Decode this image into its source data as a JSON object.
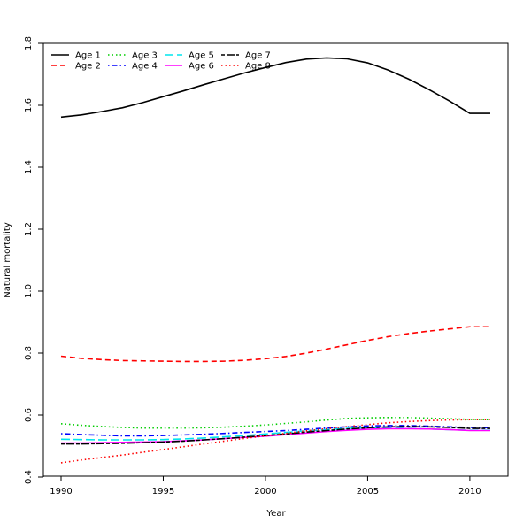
{
  "chart_data": {
    "type": "line",
    "title": "",
    "xlabel": "Year",
    "ylabel": "Natural mortality",
    "xlim": [
      1990,
      2011
    ],
    "ylim": [
      0.4,
      1.8
    ],
    "xticks": [
      1990,
      1995,
      2000,
      2005,
      2010
    ],
    "yticks": [
      0.4,
      0.6,
      0.8,
      1.0,
      1.2,
      1.4,
      1.6,
      1.8
    ],
    "ytick_labels": [
      "0.4",
      "0.6",
      "0.8",
      "1.0",
      "1.2",
      "1.4",
      "1.6",
      "1.8"
    ],
    "grid": false,
    "legend_position": "top-left",
    "x": [
      1990,
      1991,
      1992,
      1993,
      1994,
      1995,
      1996,
      1997,
      1998,
      1999,
      2000,
      2001,
      2002,
      2003,
      2004,
      2005,
      2006,
      2007,
      2008,
      2009,
      2010,
      2011
    ],
    "series": [
      {
        "name": "Age 1",
        "color": "#000000",
        "dash": "solid",
        "values": [
          1.562,
          1.569,
          1.58,
          1.592,
          1.609,
          1.628,
          1.647,
          1.667,
          1.686,
          1.705,
          1.722,
          1.738,
          1.749,
          1.753,
          1.75,
          1.737,
          1.714,
          1.685,
          1.651,
          1.614,
          1.574,
          1.574
        ]
      },
      {
        "name": "Age 2",
        "color": "#ff0000",
        "dash": "dashed",
        "values": [
          0.79,
          0.783,
          0.779,
          0.776,
          0.775,
          0.774,
          0.773,
          0.773,
          0.774,
          0.777,
          0.782,
          0.789,
          0.8,
          0.813,
          0.827,
          0.841,
          0.853,
          0.863,
          0.871,
          0.878,
          0.885,
          0.885
        ]
      },
      {
        "name": "Age 3",
        "color": "#00cd00",
        "dash": "dotted",
        "values": [
          0.572,
          0.567,
          0.563,
          0.56,
          0.558,
          0.558,
          0.558,
          0.559,
          0.561,
          0.564,
          0.568,
          0.573,
          0.578,
          0.584,
          0.589,
          0.591,
          0.592,
          0.592,
          0.59,
          0.588,
          0.586,
          0.585
        ]
      },
      {
        "name": "Age 4",
        "color": "#0000ff",
        "dash": "dotdash",
        "values": [
          0.54,
          0.537,
          0.535,
          0.533,
          0.533,
          0.534,
          0.536,
          0.538,
          0.541,
          0.544,
          0.547,
          0.55,
          0.554,
          0.558,
          0.562,
          0.565,
          0.566,
          0.566,
          0.564,
          0.562,
          0.56,
          0.559
        ]
      },
      {
        "name": "Age 5",
        "color": "#00e5ee",
        "dash": "longdash",
        "values": [
          0.522,
          0.521,
          0.52,
          0.52,
          0.52,
          0.521,
          0.523,
          0.526,
          0.53,
          0.534,
          0.539,
          0.544,
          0.549,
          0.553,
          0.557,
          0.559,
          0.559,
          0.557,
          0.555,
          0.553,
          0.551,
          0.551
        ]
      },
      {
        "name": "Age 6",
        "color": "#ff00ff",
        "dash": "solid",
        "values": [
          0.51,
          0.51,
          0.511,
          0.512,
          0.513,
          0.514,
          0.517,
          0.52,
          0.524,
          0.528,
          0.532,
          0.537,
          0.542,
          0.547,
          0.551,
          0.554,
          0.556,
          0.556,
          0.555,
          0.553,
          0.55,
          0.55
        ]
      },
      {
        "name": "Age 7",
        "color": "#000000",
        "dash": "twodash",
        "values": [
          0.507,
          0.507,
          0.508,
          0.509,
          0.511,
          0.513,
          0.516,
          0.52,
          0.524,
          0.529,
          0.534,
          0.539,
          0.545,
          0.55,
          0.555,
          0.559,
          0.562,
          0.563,
          0.562,
          0.56,
          0.557,
          0.557
        ]
      },
      {
        "name": "Age 8",
        "color": "#ff0000",
        "dash": "dotted",
        "values": [
          0.446,
          0.455,
          0.463,
          0.471,
          0.48,
          0.489,
          0.498,
          0.507,
          0.516,
          0.525,
          0.533,
          0.541,
          0.549,
          0.556,
          0.563,
          0.569,
          0.575,
          0.579,
          0.582,
          0.584,
          0.585,
          0.585
        ]
      }
    ]
  }
}
